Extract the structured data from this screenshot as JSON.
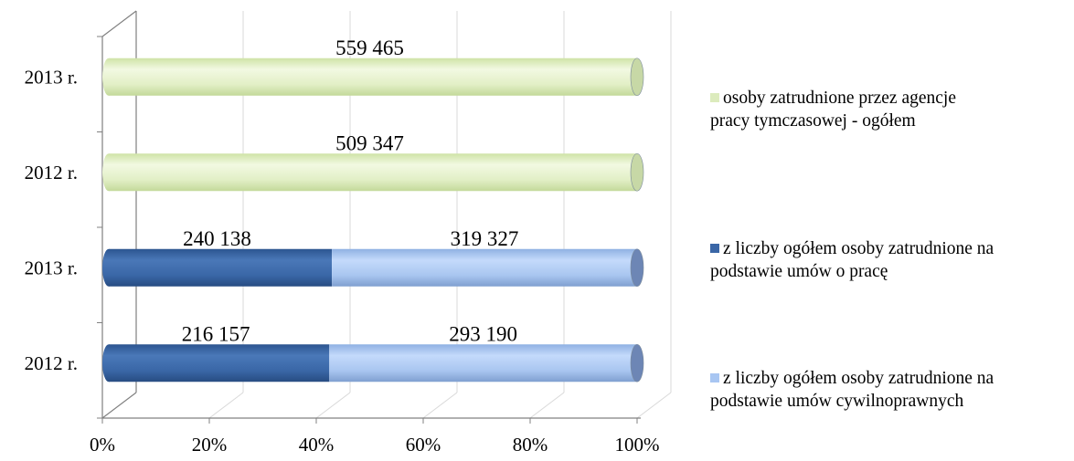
{
  "chart_data": {
    "type": "bar",
    "orientation": "horizontal",
    "stacking": "percent",
    "style": "3d-cylinder",
    "title": "",
    "xlabel": "",
    "ylabel": "",
    "xlim": [
      0,
      100
    ],
    "x_ticks": [
      "0%",
      "20%",
      "40%",
      "60%",
      "80%",
      "100%"
    ],
    "grid": true,
    "legend_position": "right",
    "categories": [
      "2012 r.",
      "2013 r.",
      "2012 r.",
      "2013 r."
    ],
    "series": [
      {
        "name": "z liczby ogółem osoby zatrudnione na podstawie umów o pracę",
        "color": "#3a66a6",
        "values": [
          216157,
          240138,
          null,
          null
        ],
        "labels": [
          "216 157",
          "240 138",
          "",
          ""
        ]
      },
      {
        "name": "z liczby ogółem osoby zatrudnione na podstawie umów cywilnoprawnych",
        "color": "#a8c6f2",
        "values": [
          293190,
          319327,
          null,
          null
        ],
        "labels": [
          "293 190",
          "319 327",
          "",
          ""
        ]
      },
      {
        "name": "osoby zatrudnione przez agencje pracy tymczasowej - ogółem",
        "color": "#e3f1c6",
        "values": [
          null,
          null,
          509347,
          559465
        ],
        "labels": [
          "",
          "",
          "509 347",
          "559 465"
        ]
      }
    ]
  },
  "legend": {
    "items": [
      {
        "label": "osoby zatrudnione przez agencje\npracy tymczasowej - ogółem",
        "color": "#dcebbd"
      },
      {
        "label": "z liczby ogółem osoby zatrudnione na\npodstawie umów o pracę",
        "color": "#3a66a6"
      },
      {
        "label": "z liczby ogółem osoby zatrudnione na\npodstawie umów cywilnoprawnych",
        "color": "#a8c6f2"
      }
    ]
  }
}
